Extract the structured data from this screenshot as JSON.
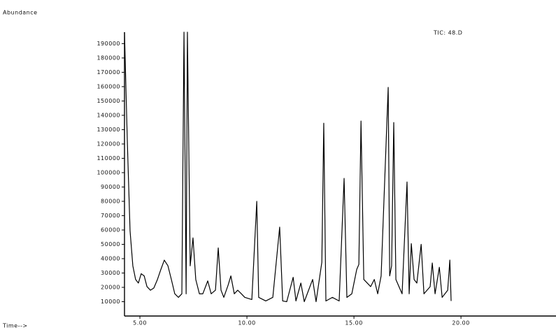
{
  "chart_data": {
    "type": "line",
    "title": "Abundance",
    "annotation": "TIC: 48.D",
    "x_label": "Time-->",
    "color": "#000000",
    "x": [
      4.28,
      4.41,
      4.54,
      4.67,
      4.8,
      4.93,
      5.06,
      5.2,
      5.33,
      5.49,
      5.65,
      5.82,
      5.98,
      6.14,
      6.31,
      6.47,
      6.63,
      6.8,
      6.96,
      7.06,
      7.16,
      7.22,
      7.35,
      7.48,
      7.61,
      7.78,
      7.94,
      8.17,
      8.33,
      8.53,
      8.66,
      8.79,
      8.92,
      9.12,
      9.25,
      9.41,
      9.57,
      9.74,
      9.9,
      10.23,
      10.46,
      10.55,
      10.88,
      11.21,
      11.53,
      11.67,
      11.86,
      12.16,
      12.29,
      12.52,
      12.68,
      13.07,
      13.23,
      13.5,
      13.59,
      13.69,
      13.99,
      14.31,
      14.54,
      14.67,
      14.9,
      15.13,
      15.23,
      15.33,
      15.46,
      15.78,
      15.95,
      16.11,
      16.27,
      16.6,
      16.67,
      16.76,
      16.86,
      16.96,
      17.25,
      17.48,
      17.58,
      17.68,
      17.81,
      17.94,
      18.14,
      18.27,
      18.56,
      18.66,
      18.79,
      18.99,
      19.12,
      19.25,
      19.38,
      19.48,
      19.54
    ],
    "values": [
      198000,
      123000,
      59500,
      35000,
      25500,
      23000,
      29500,
      28000,
      20500,
      18000,
      19500,
      25500,
      32500,
      39000,
      35000,
      25500,
      15500,
      13000,
      15500,
      198000,
      15500,
      198000,
      35000,
      54500,
      25500,
      15500,
      15500,
      24500,
      15500,
      18000,
      47500,
      18000,
      13000,
      21500,
      28000,
      15500,
      18000,
      15500,
      13000,
      11500,
      80000,
      13000,
      10500,
      13000,
      62000,
      10500,
      10000,
      27000,
      10500,
      23000,
      10000,
      25500,
      10000,
      37500,
      134500,
      10500,
      13000,
      10500,
      96000,
      13000,
      15500,
      32500,
      36000,
      136000,
      25500,
      20500,
      25500,
      15500,
      28000,
      159500,
      28000,
      35000,
      135000,
      25500,
      15500,
      93500,
      15500,
      50500,
      25500,
      23000,
      50000,
      15500,
      20500,
      37000,
      15500,
      34000,
      13000,
      15500,
      18000,
      39000,
      10500
    ],
    "xlim": [
      4.28,
      24.44
    ],
    "xticks": [
      {
        "value": 5,
        "label": "5.00"
      },
      {
        "value": 10,
        "label": "10.00"
      },
      {
        "value": 15,
        "label": "15.00"
      },
      {
        "value": 20,
        "label": "20.00"
      }
    ],
    "ylim": [
      0,
      198000
    ],
    "yticks": [
      10000,
      20000,
      30000,
      40000,
      50000,
      60000,
      70000,
      80000,
      90000,
      100000,
      110000,
      120000,
      130000,
      140000,
      150000,
      160000,
      170000,
      180000,
      190000
    ],
    "grid": false
  }
}
